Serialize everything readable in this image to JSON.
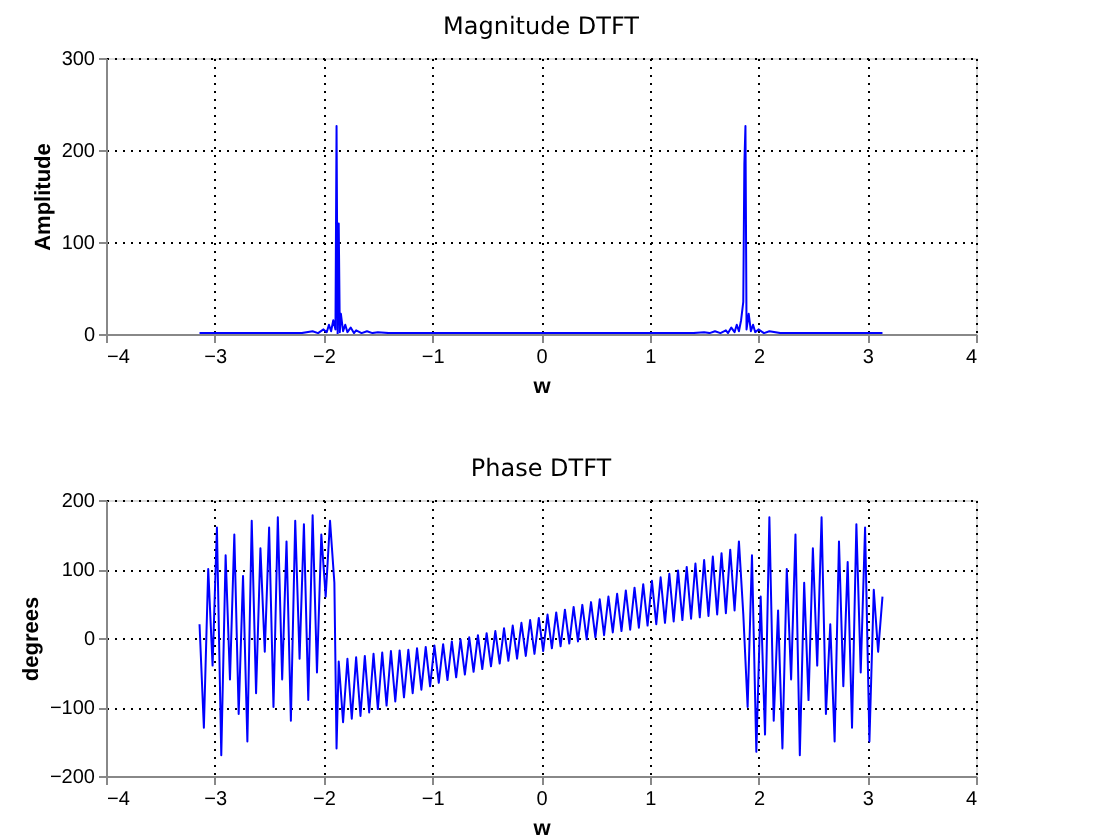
{
  "chart_data": [
    {
      "type": "line",
      "title": "Magnitude DTFT",
      "xlabel": "w",
      "ylabel": "Amplitude",
      "xlim": [
        -4,
        4
      ],
      "ylim": [
        0,
        300
      ],
      "xticks": [
        -4,
        -3,
        -2,
        -1,
        0,
        1,
        2,
        3,
        4
      ],
      "yticks": [
        0,
        100,
        200,
        300
      ],
      "grid": true,
      "series": [
        {
          "color": "#0000ff",
          "x": [
            -3.14,
            -2.5,
            -2.2,
            -2.1,
            -2.05,
            -2.0,
            -1.97,
            -1.95,
            -1.93,
            -1.91,
            -1.89,
            -1.88,
            -1.87,
            -1.86,
            -1.85,
            -1.84,
            -1.82,
            -1.8,
            -1.78,
            -1.75,
            -1.72,
            -1.7,
            -1.65,
            -1.6,
            -1.55,
            -1.5,
            -1.4,
            0,
            1.4,
            1.5,
            1.55,
            1.6,
            1.65,
            1.7,
            1.72,
            1.75,
            1.78,
            1.8,
            1.82,
            1.84,
            1.86,
            1.87,
            1.88,
            1.89,
            1.91,
            1.93,
            1.95,
            1.97,
            2.0,
            2.05,
            2.1,
            2.2,
            2.5,
            3.14
          ],
          "values": [
            1,
            1,
            1,
            3,
            1,
            5,
            2,
            10,
            3,
            15,
            5,
            226,
            0,
            120,
            2,
            22,
            3,
            10,
            2,
            7,
            1,
            4,
            1,
            3,
            1,
            2,
            1,
            1,
            1,
            2,
            1,
            3,
            1,
            4,
            1,
            7,
            2,
            10,
            3,
            15,
            35,
            185,
            226,
            5,
            22,
            3,
            10,
            2,
            5,
            1,
            3,
            1,
            1,
            1
          ]
        }
      ]
    },
    {
      "type": "line",
      "title": "Phase DTFT",
      "xlabel": "w",
      "ylabel": "degrees",
      "xlim": [
        -4,
        4
      ],
      "ylim": [
        -200,
        200
      ],
      "xticks": [
        -4,
        -3,
        -2,
        -1,
        0,
        1,
        2,
        3,
        4
      ],
      "yticks": [
        -200,
        -100,
        0,
        100,
        200
      ],
      "grid": true,
      "series": [
        {
          "color": "#0000ff",
          "x": [
            -3.14,
            -3.1,
            -3.06,
            -3.02,
            -2.98,
            -2.94,
            -2.9,
            -2.86,
            -2.82,
            -2.78,
            -2.74,
            -2.7,
            -2.66,
            -2.62,
            -2.58,
            -2.54,
            -2.5,
            -2.46,
            -2.42,
            -2.38,
            -2.34,
            -2.3,
            -2.26,
            -2.22,
            -2.18,
            -2.14,
            -2.1,
            -2.06,
            -2.02,
            -1.98,
            -1.94,
            -1.9,
            -1.88,
            -1.86,
            -1.82,
            -1.78,
            -1.74,
            -1.7,
            -1.66,
            -1.62,
            -1.58,
            -1.54,
            -1.5,
            -1.46,
            -1.42,
            -1.38,
            -1.34,
            -1.3,
            -1.26,
            -1.22,
            -1.18,
            -1.14,
            -1.1,
            -1.06,
            -1.02,
            -0.98,
            -0.94,
            -0.9,
            -0.86,
            -0.82,
            -0.78,
            -0.74,
            -0.7,
            -0.66,
            -0.62,
            -0.58,
            -0.54,
            -0.5,
            -0.46,
            -0.42,
            -0.38,
            -0.34,
            -0.3,
            -0.26,
            -0.22,
            -0.18,
            -0.14,
            -0.1,
            -0.06,
            -0.02,
            0.02,
            0.06,
            0.1,
            0.14,
            0.18,
            0.22,
            0.26,
            0.3,
            0.34,
            0.38,
            0.42,
            0.46,
            0.5,
            0.54,
            0.58,
            0.62,
            0.66,
            0.7,
            0.74,
            0.78,
            0.82,
            0.86,
            0.9,
            0.94,
            0.98,
            1.02,
            1.06,
            1.1,
            1.14,
            1.18,
            1.22,
            1.26,
            1.3,
            1.34,
            1.38,
            1.42,
            1.46,
            1.5,
            1.54,
            1.58,
            1.62,
            1.66,
            1.7,
            1.74,
            1.78,
            1.82,
            1.86,
            1.9,
            1.94,
            1.98,
            2.02,
            2.06,
            2.1,
            2.14,
            2.18,
            2.22,
            2.26,
            2.3,
            2.34,
            2.38,
            2.42,
            2.46,
            2.5,
            2.54,
            2.58,
            2.62,
            2.66,
            2.7,
            2.74,
            2.78,
            2.82,
            2.86,
            2.9,
            2.94,
            2.98,
            3.02,
            3.06,
            3.1,
            3.14
          ],
          "values": [
            20,
            -130,
            100,
            -40,
            160,
            -170,
            120,
            -60,
            150,
            -110,
            90,
            -150,
            170,
            -80,
            130,
            -20,
            160,
            -100,
            175,
            -60,
            140,
            -120,
            170,
            -30,
            165,
            -90,
            178,
            -50,
            150,
            60,
            170,
            80,
            -160,
            -34,
            -122,
            -30,
            -117,
            -28,
            -113,
            -26,
            -108,
            -23,
            -103,
            -21,
            -98,
            -19,
            -92,
            -18,
            -86,
            -17,
            -80,
            -15,
            -75,
            -13,
            -70,
            -11,
            -65,
            -9,
            -61,
            -5,
            -57,
            -2,
            -53,
            1,
            -49,
            4,
            -45,
            7,
            -41,
            10,
            -37,
            14,
            -33,
            18,
            -30,
            22,
            -26,
            26,
            -23,
            29,
            -19,
            34,
            -15,
            37,
            -12,
            41,
            -8,
            45,
            -5,
            48,
            -2,
            52,
            1,
            56,
            4,
            60,
            8,
            64,
            10,
            69,
            12,
            73,
            15,
            78,
            18,
            83,
            20,
            88,
            22,
            93,
            24,
            98,
            26,
            103,
            28,
            108,
            30,
            113,
            32,
            118,
            34,
            123,
            36,
            128,
            40,
            140,
            35,
            -100,
            120,
            -165,
            60,
            -140,
            175,
            -120,
            40,
            -160,
            100,
            -60,
            150,
            -170,
            80,
            -90,
            130,
            -40,
            175,
            -110,
            20,
            -150,
            140,
            -70,
            110,
            -130,
            165,
            -50,
            160,
            -150,
            70,
            -20,
            60
          ]
        }
      ]
    }
  ]
}
